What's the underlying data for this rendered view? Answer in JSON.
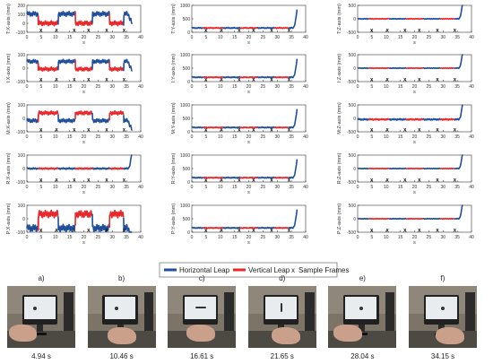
{
  "chart_data": [
    {
      "type": "line",
      "id": "TX",
      "ylabel": "T:X-axis (mm)",
      "xlabel": "s",
      "xlim": [
        0,
        40
      ],
      "ylim": [
        -100,
        200
      ],
      "yticks": [
        -100,
        0,
        100,
        200
      ],
      "xticks": [
        0,
        5,
        10,
        15,
        20,
        25,
        30,
        35,
        40
      ],
      "baseline": 50,
      "amp": 55,
      "h_profile": "high",
      "v_profile": "low",
      "end": "drop"
    },
    {
      "type": "line",
      "id": "TY",
      "ylabel": "T:Y-axis (mm)",
      "xlabel": "s",
      "xlim": [
        0,
        40
      ],
      "ylim": [
        0,
        1000
      ],
      "yticks": [
        0,
        500,
        1000
      ],
      "xticks": [
        0,
        5,
        10,
        15,
        20,
        25,
        30,
        35,
        40
      ],
      "baseline": 160,
      "amp": 40,
      "h_profile": "flat",
      "v_profile": "flat",
      "end": "rise"
    },
    {
      "type": "line",
      "id": "TZ",
      "ylabel": "T:Z-axis (mm)",
      "xlabel": "s",
      "xlim": [
        0,
        40
      ],
      "ylim": [
        -500,
        500
      ],
      "yticks": [
        -500,
        0,
        500
      ],
      "xticks": [
        0,
        5,
        10,
        15,
        20,
        25,
        30,
        35,
        40
      ],
      "baseline": 0,
      "amp": 25,
      "h_profile": "flat",
      "v_profile": "flat",
      "end": "rise"
    },
    {
      "type": "line",
      "id": "IX",
      "ylabel": "I:X-axis (mm)",
      "xlabel": "s",
      "xlim": [
        0,
        40
      ],
      "ylim": [
        -100,
        100
      ],
      "yticks": [
        -100,
        0,
        100
      ],
      "xticks": [
        0,
        5,
        10,
        15,
        20,
        25,
        30,
        35,
        40
      ],
      "baseline": 20,
      "amp": 30,
      "h_profile": "high",
      "v_profile": "low",
      "end": "drop"
    },
    {
      "type": "line",
      "id": "IY",
      "ylabel": "I:Y-axis (mm)",
      "xlabel": "s",
      "xlim": [
        0,
        40
      ],
      "ylim": [
        0,
        1000
      ],
      "yticks": [
        0,
        500,
        1000
      ],
      "xticks": [
        0,
        5,
        10,
        15,
        20,
        25,
        30,
        35,
        40
      ],
      "baseline": 160,
      "amp": 40,
      "h_profile": "flat",
      "v_profile": "flat",
      "end": "rise"
    },
    {
      "type": "line",
      "id": "IZ",
      "ylabel": "I:Z-axis (mm)",
      "xlabel": "s",
      "xlim": [
        0,
        40
      ],
      "ylim": [
        -500,
        500
      ],
      "yticks": [
        -500,
        0,
        500
      ],
      "xticks": [
        0,
        5,
        10,
        15,
        20,
        25,
        30,
        35,
        40
      ],
      "baseline": 0,
      "amp": 25,
      "h_profile": "flat",
      "v_profile": "flat",
      "end": "rise"
    },
    {
      "type": "line",
      "id": "MX",
      "ylabel": "M:X-axis (mm)",
      "xlabel": "s",
      "xlim": [
        0,
        40
      ],
      "ylim": [
        -100,
        100
      ],
      "yticks": [
        -100,
        0,
        100
      ],
      "xticks": [
        0,
        5,
        10,
        15,
        20,
        25,
        30,
        35,
        40
      ],
      "baseline": 10,
      "amp": 30,
      "h_profile": "low",
      "v_profile": "high",
      "end": "drop"
    },
    {
      "type": "line",
      "id": "MY",
      "ylabel": "M:Y-axis (mm)",
      "xlabel": "s",
      "xlim": [
        0,
        40
      ],
      "ylim": [
        0,
        1000
      ],
      "yticks": [
        0,
        500,
        1000
      ],
      "xticks": [
        0,
        5,
        10,
        15,
        20,
        25,
        30,
        35,
        40
      ],
      "baseline": 160,
      "amp": 40,
      "h_profile": "flat",
      "v_profile": "flat",
      "end": "rise"
    },
    {
      "type": "line",
      "id": "MZ",
      "ylabel": "M:Z-axis (mm)",
      "xlabel": "s",
      "xlim": [
        0,
        40
      ],
      "ylim": [
        -500,
        500
      ],
      "yticks": [
        -500,
        0,
        500
      ],
      "xticks": [
        0,
        5,
        10,
        15,
        20,
        25,
        30,
        35,
        40
      ],
      "baseline": -40,
      "amp": 60,
      "h_profile": "flat",
      "v_profile": "flat",
      "end": "rise"
    },
    {
      "type": "line",
      "id": "RX",
      "ylabel": "R:X-axis (mm)",
      "xlabel": "s",
      "xlim": [
        0,
        40
      ],
      "ylim": [
        -100,
        100
      ],
      "yticks": [
        -100,
        0,
        100
      ],
      "xticks": [
        0,
        5,
        10,
        15,
        20,
        25,
        30,
        35,
        40
      ],
      "baseline": 0,
      "amp": 12,
      "h_profile": "flat",
      "v_profile": "flat",
      "end": "rise"
    },
    {
      "type": "line",
      "id": "RY",
      "ylabel": "R:Y-axis (mm)",
      "xlabel": "s",
      "xlim": [
        0,
        40
      ],
      "ylim": [
        0,
        1000
      ],
      "yticks": [
        0,
        500,
        1000
      ],
      "xticks": [
        0,
        5,
        10,
        15,
        20,
        25,
        30,
        35,
        40
      ],
      "baseline": 160,
      "amp": 40,
      "h_profile": "flat",
      "v_profile": "flat",
      "end": "rise"
    },
    {
      "type": "line",
      "id": "RZ",
      "ylabel": "R:Z-axis (mm)",
      "xlabel": "s",
      "xlim": [
        0,
        40
      ],
      "ylim": [
        -500,
        500
      ],
      "yticks": [
        -500,
        0,
        500
      ],
      "xticks": [
        0,
        5,
        10,
        15,
        20,
        25,
        30,
        35,
        40
      ],
      "baseline": 0,
      "amp": 25,
      "h_profile": "flat",
      "v_profile": "flat",
      "end": "rise"
    },
    {
      "type": "line",
      "id": "PX",
      "ylabel": "P:X-axis (mm)",
      "xlabel": "s",
      "xlim": [
        0,
        40
      ],
      "ylim": [
        -100,
        100
      ],
      "yticks": [
        -100,
        0,
        100
      ],
      "xticks": [
        0,
        5,
        10,
        15,
        20,
        25,
        30,
        35,
        40
      ],
      "baseline": -20,
      "amp": 55,
      "h_profile": "low",
      "v_profile": "high",
      "end": "drop"
    },
    {
      "type": "line",
      "id": "PY",
      "ylabel": "P:Y-axis (mm)",
      "xlabel": "s",
      "xlim": [
        0,
        40
      ],
      "ylim": [
        0,
        1000
      ],
      "yticks": [
        0,
        500,
        1000
      ],
      "xticks": [
        0,
        5,
        10,
        15,
        20,
        25,
        30,
        35,
        40
      ],
      "baseline": 160,
      "amp": 40,
      "h_profile": "flat",
      "v_profile": "flat",
      "end": "rise"
    },
    {
      "type": "line",
      "id": "PZ",
      "ylabel": "P:Z-axis (mm)",
      "xlabel": "s",
      "xlim": [
        0,
        40
      ],
      "ylim": [
        -500,
        500
      ],
      "yticks": [
        -500,
        0,
        500
      ],
      "xticks": [
        0,
        5,
        10,
        15,
        20,
        25,
        30,
        35,
        40
      ],
      "baseline": 0,
      "amp": 25,
      "h_profile": "flat",
      "v_profile": "flat",
      "end": "rise"
    }
  ],
  "segments": [
    [
      0,
      4,
      "h"
    ],
    [
      4,
      11,
      "v"
    ],
    [
      11,
      17,
      "h"
    ],
    [
      17,
      23,
      "v"
    ],
    [
      23,
      29,
      "h"
    ],
    [
      29,
      34,
      "v"
    ],
    [
      34,
      37,
      "h"
    ]
  ],
  "sample_frames": [
    4.94,
    10.46,
    16.61,
    21.65,
    28.04,
    34.15
  ],
  "legend": {
    "horizontal": "Horizontal Leap",
    "vertical": "Vertical Leap",
    "sample_marker": "x",
    "sample": "Sample Frames"
  },
  "colors": {
    "horizontal": "#1f4e9c",
    "vertical": "#e8282b",
    "axis": "#333333",
    "marker": "#111111"
  },
  "photos": [
    {
      "label": "a)",
      "time": "4.94 s",
      "gesture": "dot"
    },
    {
      "label": "b)",
      "time": "10.46 s",
      "gesture": "dot"
    },
    {
      "label": "c)",
      "time": "16.61 s",
      "gesture": "horizontal"
    },
    {
      "label": "d)",
      "time": "21.65 s",
      "gesture": "vertical"
    },
    {
      "label": "e)",
      "time": "28.04 s",
      "gesture": "dot"
    },
    {
      "label": "f)",
      "time": "34.15 s",
      "gesture": "dot"
    }
  ]
}
